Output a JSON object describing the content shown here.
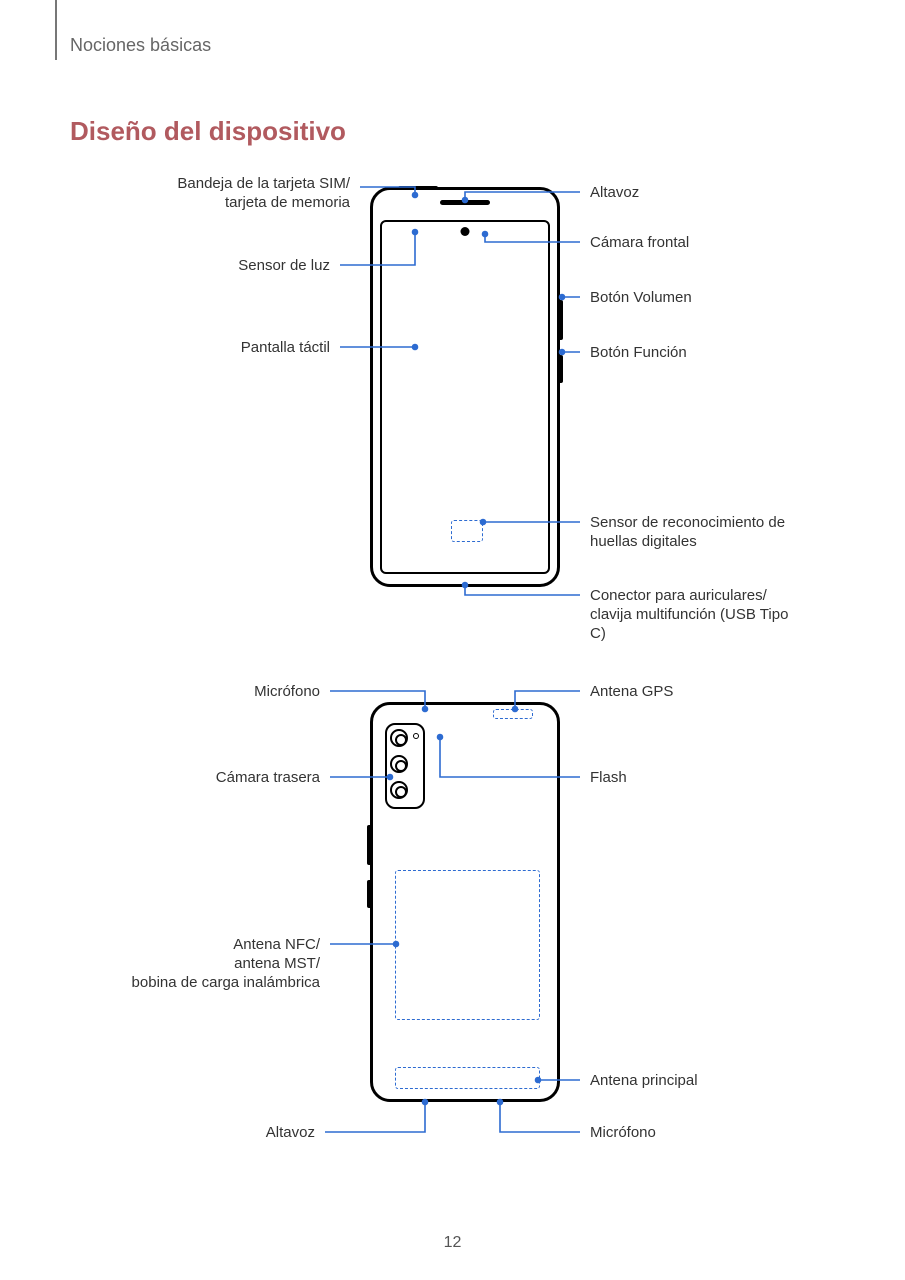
{
  "breadcrumb": "Nociones básicas",
  "section_title": "Diseño del dispositivo",
  "title_color": "#b15a5f",
  "leader_color": "#2d6bd1",
  "dash_color": "#2d6bd1",
  "text_color": "#333333",
  "page_number": "12",
  "front": {
    "left": {
      "sim": "Bandeja de la tarjeta SIM/\ntarjeta de memoria",
      "light": "Sensor de luz",
      "touch": "Pantalla táctil"
    },
    "right": {
      "speaker": "Altavoz",
      "front_cam": "Cámara frontal",
      "volume": "Botón Volumen",
      "function": "Botón Función",
      "fingerprint": "Sensor de reconocimiento de huellas digitales",
      "usb": "Conector para auriculares/\nclavija multifunción (USB Tipo C)"
    }
  },
  "back": {
    "left": {
      "mic": "Micrófono",
      "rear_cam": "Cámara trasera",
      "nfc": "Antena NFC/\nantena MST/\nbobina de carga inalámbrica",
      "speaker": "Altavoz"
    },
    "right": {
      "gps": "Antena GPS",
      "flash": "Flash",
      "main_ant": "Antena principal",
      "mic": "Micrófono"
    }
  }
}
